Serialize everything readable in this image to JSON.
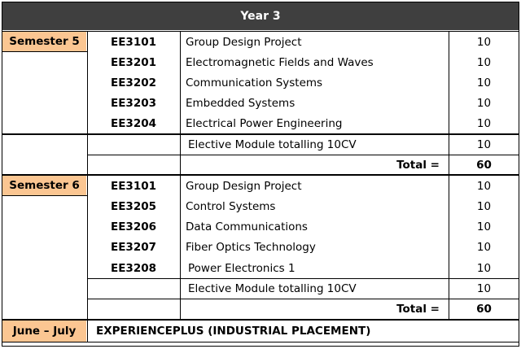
{
  "title": "Year 3",
  "semester5": {
    "label": "Semester 5",
    "rows": [
      {
        "code": "EE3101",
        "module": "Group Design Project",
        "credits": "10"
      },
      {
        "code": "EE3201",
        "module": "Electromagnetic Fields and Waves",
        "credits": "10"
      },
      {
        "code": "EE3202",
        "module": "Communication Systems",
        "credits": "10"
      },
      {
        "code": "EE3203",
        "module": "Embedded Systems",
        "credits": "10"
      },
      {
        "code": "EE3204",
        "module": "Electrical Power Engineering",
        "credits": "10"
      }
    ],
    "elective": {
      "module": "Elective Module totalling 10CV",
      "credits": "10"
    },
    "total_label": "Total =",
    "total_value": "60"
  },
  "semester6": {
    "label": "Semester 6",
    "rows": [
      {
        "code": "EE3101",
        "module": "Group Design Project",
        "credits": "10"
      },
      {
        "code": "EE3205",
        "module": "Control Systems",
        "credits": "10"
      },
      {
        "code": "EE3206",
        "module": "Data Communications",
        "credits": "10"
      },
      {
        "code": "EE3207",
        "module": "Fiber Optics Technology",
        "credits": "10"
      },
      {
        "code": "EE3208",
        "module": "Power Electronics 1",
        "credits": "10"
      }
    ],
    "elective": {
      "module": "Elective Module totalling 10CV",
      "credits": "10"
    },
    "total_label": "Total =",
    "total_value": "60"
  },
  "placement": {
    "label": "June – July",
    "text": "EXPERIENCEPLUS (INDUSTRIAL PLACEMENT)"
  },
  "colors": {
    "header_bg": "#3f3f3f",
    "semester_bg": "#fbc692"
  }
}
